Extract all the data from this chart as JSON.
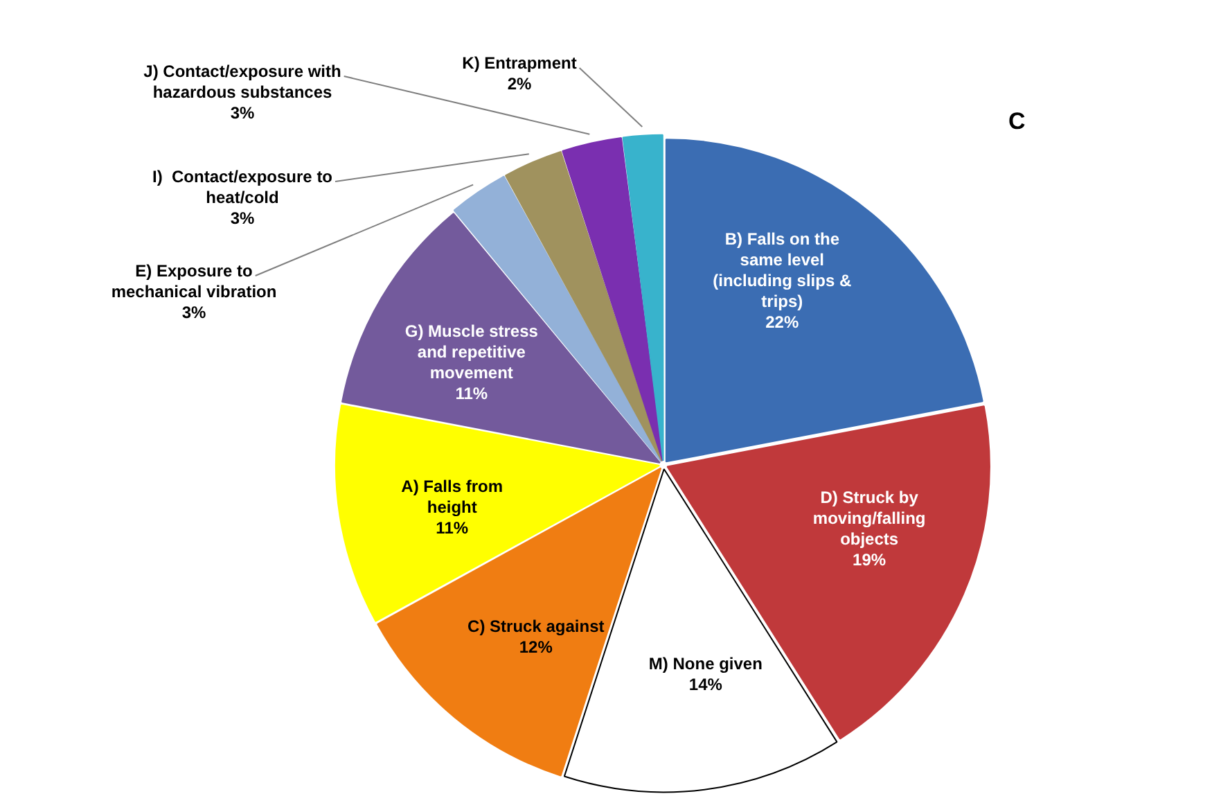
{
  "chart_data": {
    "type": "pie",
    "title": "C",
    "categories": [
      "B) Falls on the same level (including slips & trips)",
      "D) Struck by moving/falling objects",
      "M) None given",
      "C) Struck against",
      "A) Falls from height",
      "G) Muscle stress and repetitive movement",
      "E) Exposure to mechanical vibration",
      "I)  Contact/exposure to heat/cold",
      "J) Contact/exposure with hazardous substances",
      "K) Entrapment"
    ],
    "values": [
      22,
      19,
      14,
      12,
      11,
      11,
      3,
      3,
      3,
      2
    ],
    "value_labels": [
      "22%",
      "19%",
      "14%",
      "12%",
      "11%",
      "11%",
      "3%",
      "3%",
      "3%",
      "2%"
    ],
    "colors": [
      "#3b6db3",
      "#c0393b",
      "#ffffff",
      "#f07d12",
      "#ffff00",
      "#735a9c",
      "#93b1d8",
      "#a0925e",
      "#7a2fb0",
      "#38b3cc"
    ],
    "legend": false
  }
}
